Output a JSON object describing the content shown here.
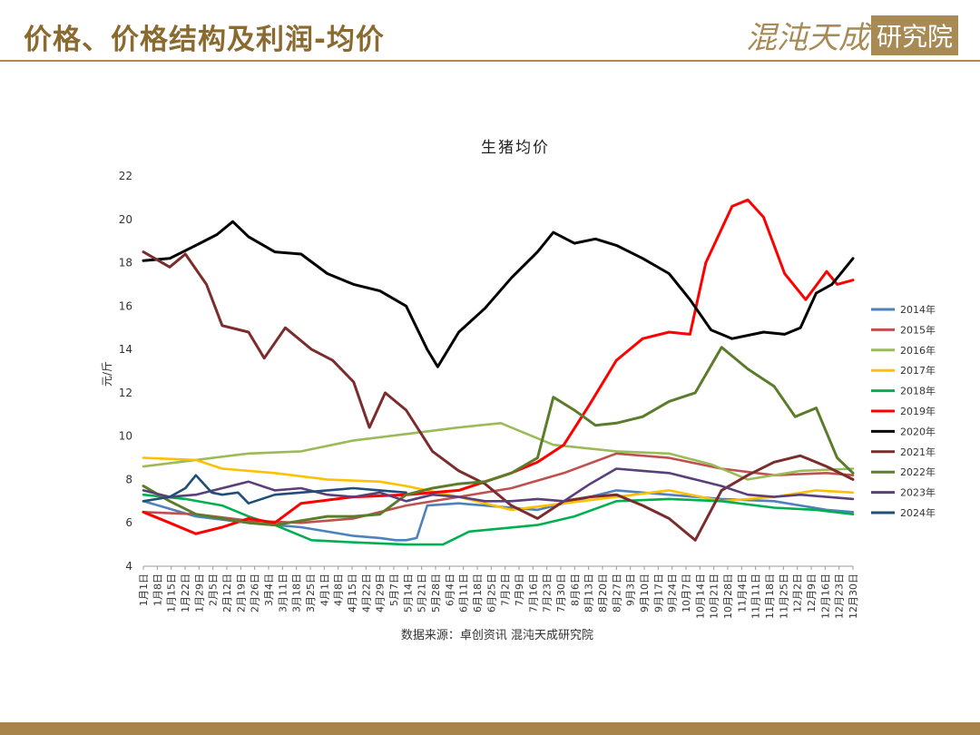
{
  "header": {
    "title": "价格、价格结构及利润-均价"
  },
  "brand": {
    "script_text": "混沌天成",
    "box_text": "研究院"
  },
  "source_text": "数据来源：卓创资讯 混沌天成研究院",
  "colors": {
    "gold": "#8a6a2e",
    "rule": "#b08a4e",
    "footer": "#a8844a"
  },
  "chart_data": {
    "type": "line",
    "title": "生猪均价",
    "ylabel": "元/斤",
    "ylim": [
      4,
      22
    ],
    "yticks": [
      4,
      6,
      8,
      10,
      12,
      14,
      16,
      18,
      20,
      22
    ],
    "x_labels": [
      "1月1日",
      "1月8日",
      "1月15日",
      "1月22日",
      "1月29日",
      "2月5日",
      "2月12日",
      "2月19日",
      "2月26日",
      "3月4日",
      "3月11日",
      "3月18日",
      "3月25日",
      "4月1日",
      "4月8日",
      "4月15日",
      "4月22日",
      "4月29日",
      "5月7日",
      "5月14日",
      "5月21日",
      "5月28日",
      "6月4日",
      "6月11日",
      "6月18日",
      "6月25日",
      "7月2日",
      "7月9日",
      "7月16日",
      "7月23日",
      "7月30日",
      "8月6日",
      "8月13日",
      "8月20日",
      "8月27日",
      "9月3日",
      "9月10日",
      "9月17日",
      "9月24日",
      "10月7日",
      "10月14日",
      "10月21日",
      "10月28日",
      "11月4日",
      "11月11日",
      "11月18日",
      "11月25日",
      "12月2日",
      "12月9日",
      "12月16日",
      "12月23日",
      "12月30日"
    ],
    "legend_position": "right",
    "series": [
      {
        "name": "2014年",
        "color": "#4f81bd",
        "values": [
          [
            0,
            7.0
          ],
          [
            10,
            6.3
          ],
          [
            20,
            6.0
          ],
          [
            30,
            5.8
          ],
          [
            40,
            5.4
          ],
          [
            45,
            5.3
          ],
          [
            48,
            5.2
          ],
          [
            50,
            5.2
          ],
          [
            52,
            5.3
          ],
          [
            54,
            6.8
          ],
          [
            60,
            6.9
          ],
          [
            75,
            6.6
          ],
          [
            90,
            7.5
          ],
          [
            100,
            7.3
          ],
          [
            110,
            7.1
          ],
          [
            120,
            7.0
          ],
          [
            130,
            6.6
          ],
          [
            135,
            6.5
          ]
        ]
      },
      {
        "name": "2015年",
        "color": "#c0504d",
        "values": [
          [
            0,
            6.5
          ],
          [
            10,
            6.4
          ],
          [
            20,
            6.1
          ],
          [
            30,
            6.0
          ],
          [
            40,
            6.2
          ],
          [
            50,
            6.8
          ],
          [
            60,
            7.2
          ],
          [
            70,
            7.6
          ],
          [
            80,
            8.3
          ],
          [
            90,
            9.2
          ],
          [
            100,
            9.0
          ],
          [
            110,
            8.5
          ],
          [
            120,
            8.2
          ],
          [
            130,
            8.3
          ],
          [
            135,
            8.2
          ]
        ]
      },
      {
        "name": "2016年",
        "color": "#9bbb59",
        "values": [
          [
            0,
            8.6
          ],
          [
            10,
            8.9
          ],
          [
            20,
            9.2
          ],
          [
            30,
            9.3
          ],
          [
            40,
            9.8
          ],
          [
            50,
            10.1
          ],
          [
            60,
            10.4
          ],
          [
            68,
            10.6
          ],
          [
            72,
            10.2
          ],
          [
            78,
            9.6
          ],
          [
            90,
            9.3
          ],
          [
            100,
            9.2
          ],
          [
            108,
            8.7
          ],
          [
            115,
            8.0
          ],
          [
            125,
            8.4
          ],
          [
            135,
            8.5
          ]
        ]
      },
      {
        "name": "2017年",
        "color": "#ffc000",
        "values": [
          [
            0,
            9.0
          ],
          [
            10,
            8.9
          ],
          [
            15,
            8.5
          ],
          [
            25,
            8.3
          ],
          [
            35,
            8.0
          ],
          [
            45,
            7.9
          ],
          [
            50,
            7.7
          ],
          [
            60,
            7.2
          ],
          [
            70,
            6.6
          ],
          [
            80,
            6.9
          ],
          [
            90,
            7.2
          ],
          [
            100,
            7.5
          ],
          [
            110,
            7.0
          ],
          [
            120,
            7.2
          ],
          [
            128,
            7.5
          ],
          [
            135,
            7.4
          ]
        ]
      },
      {
        "name": "2018年",
        "color": "#00b050",
        "values": [
          [
            0,
            7.3
          ],
          [
            8,
            7.1
          ],
          [
            15,
            6.8
          ],
          [
            20,
            6.3
          ],
          [
            25,
            5.9
          ],
          [
            32,
            5.2
          ],
          [
            40,
            5.1
          ],
          [
            50,
            5.0
          ],
          [
            57,
            5.0
          ],
          [
            62,
            5.6
          ],
          [
            75,
            5.9
          ],
          [
            82,
            6.3
          ],
          [
            90,
            7.0
          ],
          [
            100,
            7.1
          ],
          [
            110,
            7.0
          ],
          [
            120,
            6.7
          ],
          [
            128,
            6.6
          ],
          [
            135,
            6.4
          ]
        ]
      },
      {
        "name": "2019年",
        "color": "#ff0000",
        "values": [
          [
            0,
            6.5
          ],
          [
            5,
            6.0
          ],
          [
            10,
            5.5
          ],
          [
            15,
            5.8
          ],
          [
            20,
            6.2
          ],
          [
            25,
            6.0
          ],
          [
            30,
            6.9
          ],
          [
            40,
            7.2
          ],
          [
            50,
            7.3
          ],
          [
            60,
            7.5
          ],
          [
            70,
            8.3
          ],
          [
            75,
            8.8
          ],
          [
            80,
            9.6
          ],
          [
            85,
            11.5
          ],
          [
            90,
            13.5
          ],
          [
            95,
            14.5
          ],
          [
            100,
            14.8
          ],
          [
            104,
            14.7
          ],
          [
            107,
            18.0
          ],
          [
            112,
            20.6
          ],
          [
            115,
            20.9
          ],
          [
            118,
            20.1
          ],
          [
            122,
            17.5
          ],
          [
            126,
            16.3
          ],
          [
            130,
            17.6
          ],
          [
            132,
            17.0
          ],
          [
            135,
            17.2
          ]
        ]
      },
      {
        "name": "2020年",
        "color": "#000000",
        "values": [
          [
            0,
            18.1
          ],
          [
            5,
            18.2
          ],
          [
            10,
            18.8
          ],
          [
            14,
            19.3
          ],
          [
            17,
            19.9
          ],
          [
            20,
            19.2
          ],
          [
            25,
            18.5
          ],
          [
            30,
            18.4
          ],
          [
            35,
            17.5
          ],
          [
            40,
            17.0
          ],
          [
            45,
            16.7
          ],
          [
            50,
            16.0
          ],
          [
            54,
            14.0
          ],
          [
            56,
            13.2
          ],
          [
            60,
            14.8
          ],
          [
            65,
            15.9
          ],
          [
            70,
            17.3
          ],
          [
            75,
            18.5
          ],
          [
            78,
            19.4
          ],
          [
            82,
            18.9
          ],
          [
            86,
            19.1
          ],
          [
            90,
            18.8
          ],
          [
            95,
            18.2
          ],
          [
            100,
            17.5
          ],
          [
            104,
            16.3
          ],
          [
            108,
            14.9
          ],
          [
            112,
            14.5
          ],
          [
            118,
            14.8
          ],
          [
            122,
            14.7
          ],
          [
            125,
            15.0
          ],
          [
            128,
            16.6
          ],
          [
            131,
            17.0
          ],
          [
            135,
            18.2
          ]
        ]
      },
      {
        "name": "2021年",
        "color": "#7b2c2c",
        "values": [
          [
            0,
            18.5
          ],
          [
            5,
            17.8
          ],
          [
            8,
            18.4
          ],
          [
            12,
            17.0
          ],
          [
            15,
            15.1
          ],
          [
            20,
            14.8
          ],
          [
            23,
            13.6
          ],
          [
            27,
            15.0
          ],
          [
            32,
            14.0
          ],
          [
            36,
            13.5
          ],
          [
            40,
            12.5
          ],
          [
            43,
            10.4
          ],
          [
            46,
            12.0
          ],
          [
            50,
            11.2
          ],
          [
            55,
            9.3
          ],
          [
            60,
            8.4
          ],
          [
            65,
            7.8
          ],
          [
            70,
            6.8
          ],
          [
            75,
            6.2
          ],
          [
            80,
            7.0
          ],
          [
            85,
            7.2
          ],
          [
            90,
            7.3
          ],
          [
            95,
            6.8
          ],
          [
            100,
            6.2
          ],
          [
            105,
            5.2
          ],
          [
            110,
            7.5
          ],
          [
            115,
            8.2
          ],
          [
            120,
            8.8
          ],
          [
            125,
            9.1
          ],
          [
            130,
            8.6
          ],
          [
            135,
            8.0
          ]
        ]
      },
      {
        "name": "2022年",
        "color": "#5b7c2a",
        "values": [
          [
            0,
            7.7
          ],
          [
            5,
            7.0
          ],
          [
            10,
            6.4
          ],
          [
            15,
            6.2
          ],
          [
            20,
            6.0
          ],
          [
            25,
            5.9
          ],
          [
            30,
            6.1
          ],
          [
            35,
            6.3
          ],
          [
            40,
            6.3
          ],
          [
            45,
            6.4
          ],
          [
            50,
            7.3
          ],
          [
            55,
            7.6
          ],
          [
            60,
            7.8
          ],
          [
            65,
            7.9
          ],
          [
            70,
            8.3
          ],
          [
            75,
            9.0
          ],
          [
            78,
            11.8
          ],
          [
            82,
            11.2
          ],
          [
            86,
            10.5
          ],
          [
            90,
            10.6
          ],
          [
            95,
            10.9
          ],
          [
            100,
            11.6
          ],
          [
            105,
            12.0
          ],
          [
            110,
            14.1
          ],
          [
            115,
            13.1
          ],
          [
            120,
            12.3
          ],
          [
            124,
            10.9
          ],
          [
            128,
            11.3
          ],
          [
            132,
            9.0
          ],
          [
            135,
            8.3
          ]
        ]
      },
      {
        "name": "2023年",
        "color": "#5b3f7a",
        "values": [
          [
            0,
            7.5
          ],
          [
            5,
            7.2
          ],
          [
            10,
            7.3
          ],
          [
            15,
            7.6
          ],
          [
            20,
            7.9
          ],
          [
            25,
            7.5
          ],
          [
            30,
            7.6
          ],
          [
            35,
            7.3
          ],
          [
            40,
            7.2
          ],
          [
            45,
            7.4
          ],
          [
            50,
            7.0
          ],
          [
            55,
            7.3
          ],
          [
            60,
            7.2
          ],
          [
            65,
            7.0
          ],
          [
            70,
            7.0
          ],
          [
            75,
            7.1
          ],
          [
            80,
            7.0
          ],
          [
            85,
            7.8
          ],
          [
            90,
            8.5
          ],
          [
            95,
            8.4
          ],
          [
            100,
            8.3
          ],
          [
            105,
            8.0
          ],
          [
            110,
            7.7
          ],
          [
            115,
            7.3
          ],
          [
            120,
            7.2
          ],
          [
            125,
            7.3
          ],
          [
            130,
            7.2
          ],
          [
            135,
            7.1
          ]
        ]
      },
      {
        "name": "2024年",
        "color": "#1f4e79",
        "values": [
          [
            0,
            7.0
          ],
          [
            5,
            7.2
          ],
          [
            8,
            7.6
          ],
          [
            10,
            8.2
          ],
          [
            13,
            7.4
          ],
          [
            15,
            7.3
          ],
          [
            18,
            7.4
          ],
          [
            20,
            6.9
          ],
          [
            25,
            7.3
          ],
          [
            30,
            7.4
          ],
          [
            35,
            7.5
          ],
          [
            40,
            7.6
          ],
          [
            45,
            7.5
          ],
          [
            50,
            7.4
          ]
        ]
      }
    ]
  }
}
